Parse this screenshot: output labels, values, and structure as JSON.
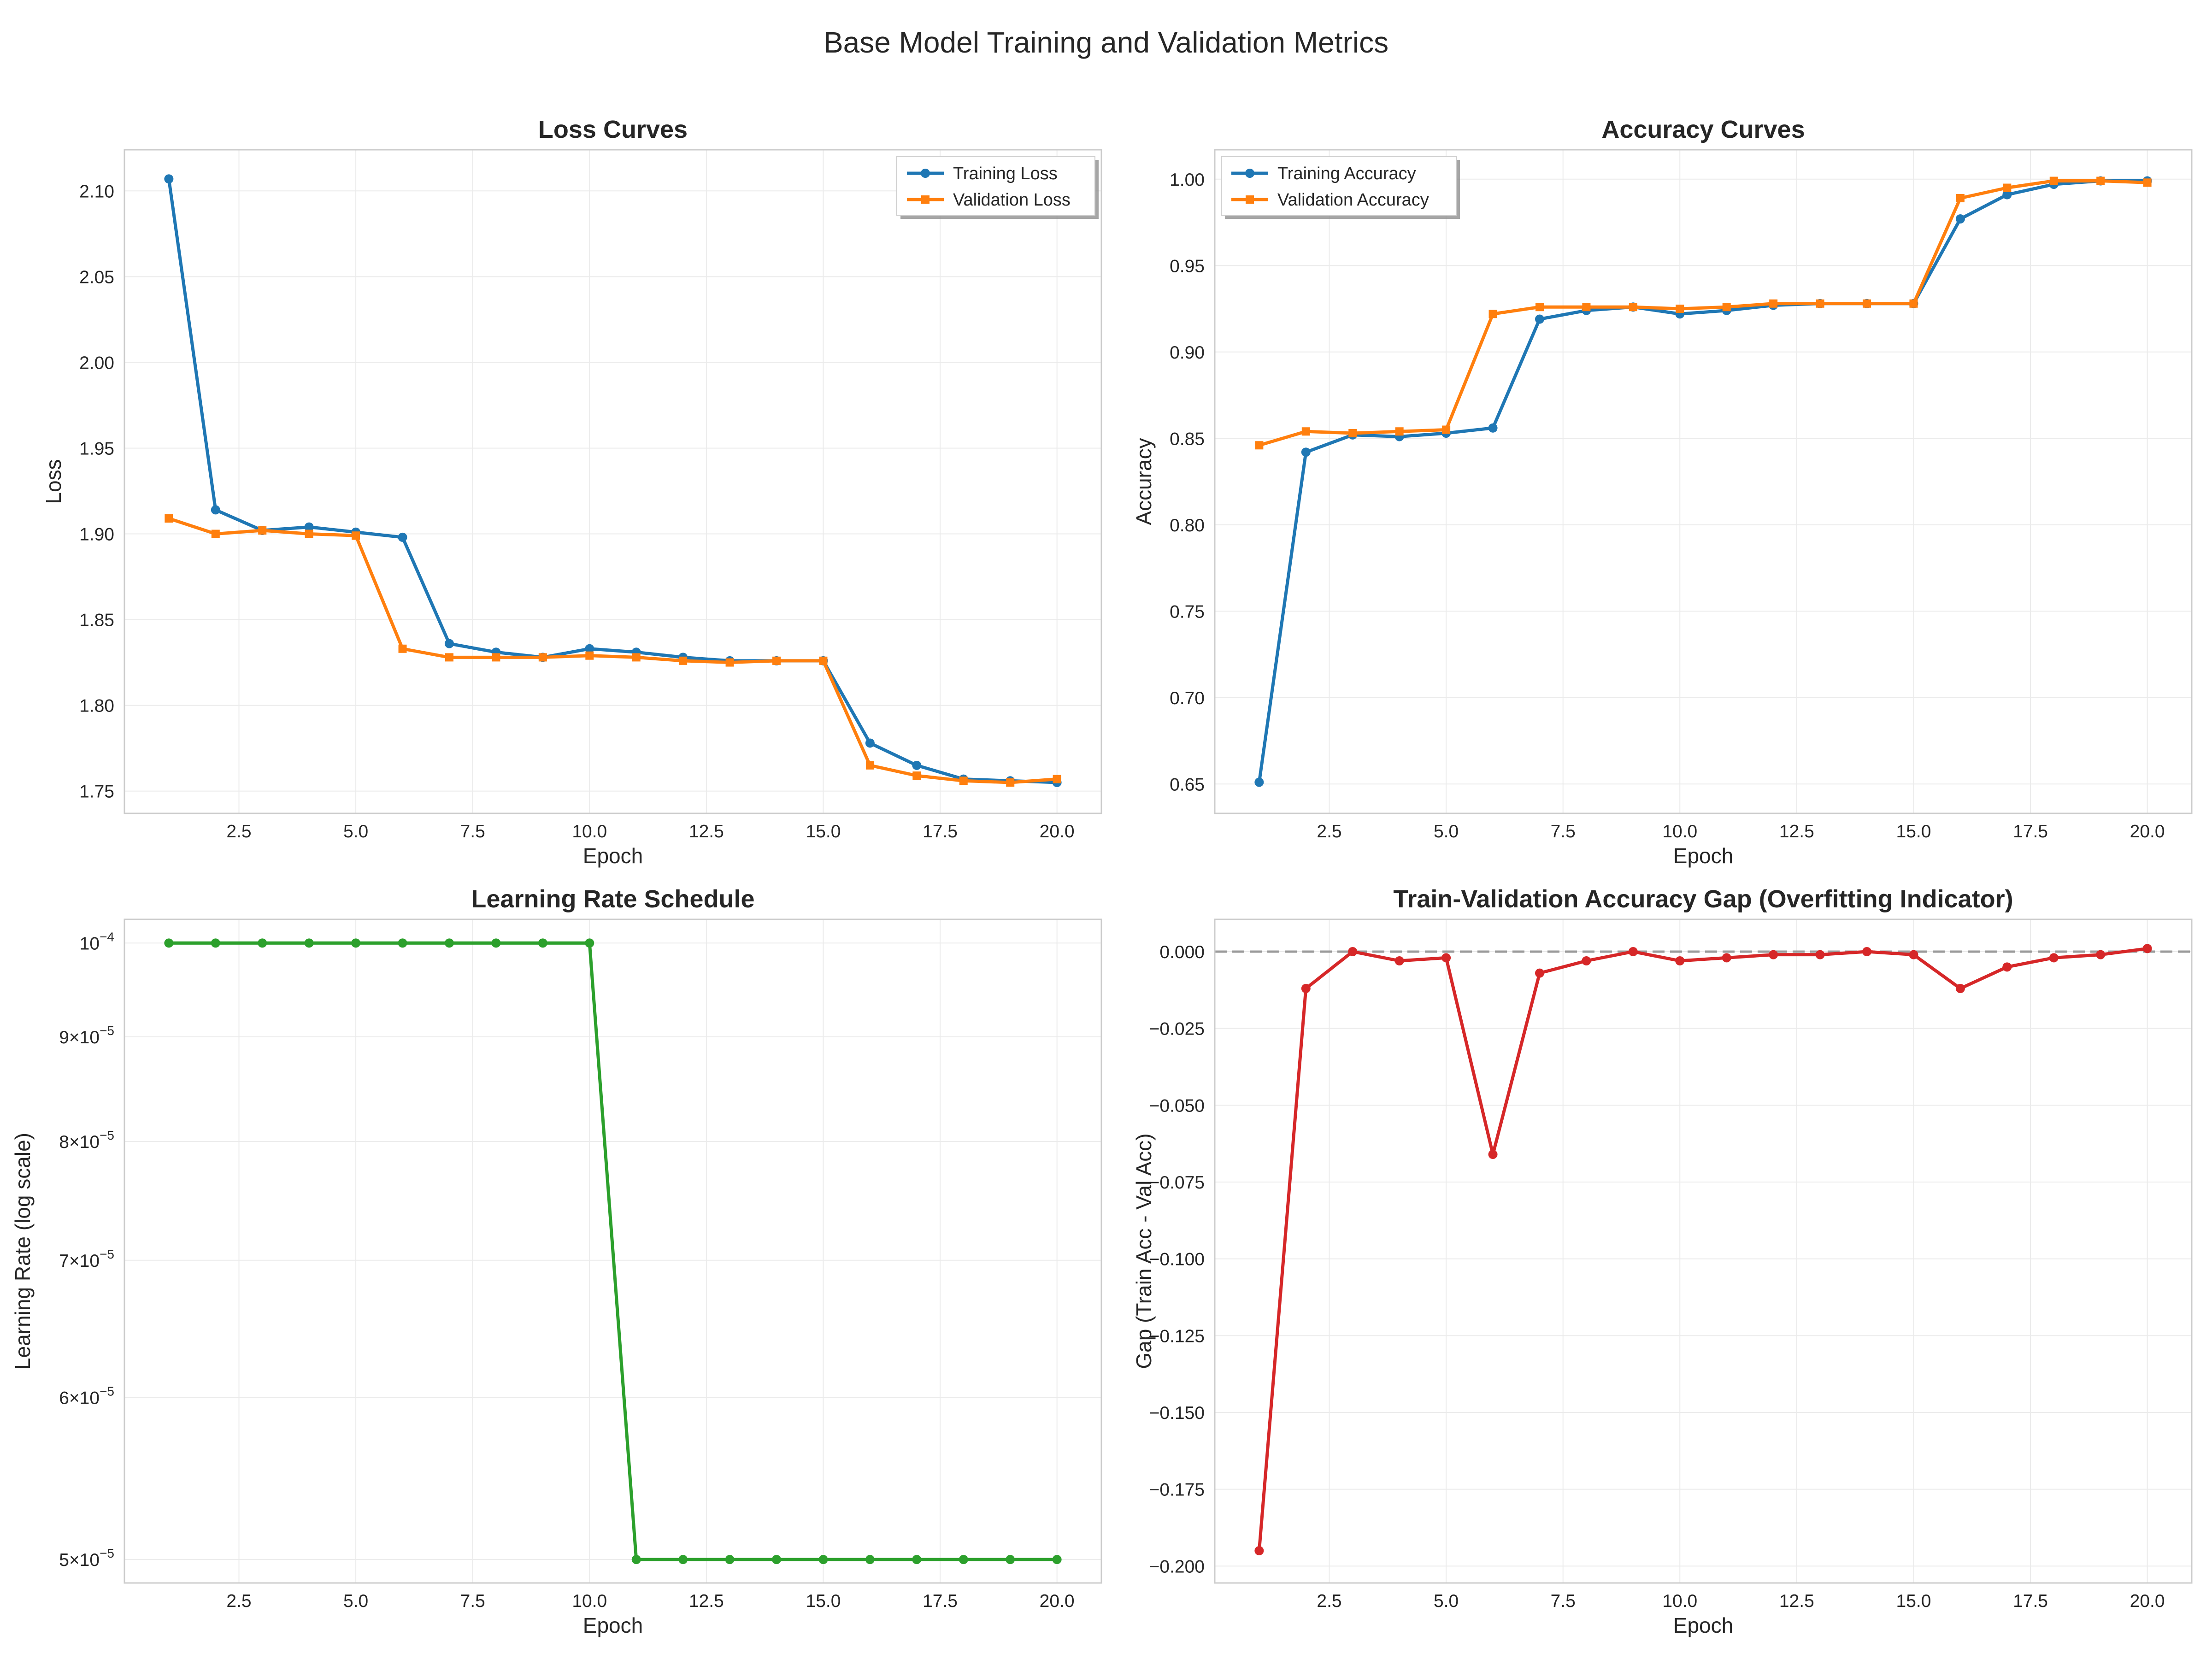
{
  "figure_title": "Base Model Training and Validation Metrics",
  "chart_data": [
    {
      "type": "line",
      "title": "Loss Curves",
      "xlabel": "Epoch",
      "ylabel": "Loss",
      "xlim": [
        0.05,
        20.95
      ],
      "ylim": [
        1.737,
        2.124
      ],
      "xticks": [
        2.5,
        5.0,
        7.5,
        10.0,
        12.5,
        15.0,
        17.5,
        20.0
      ],
      "yticks": [
        1.75,
        1.8,
        1.85,
        1.9,
        1.95,
        2.0,
        2.05,
        2.1
      ],
      "grid": true,
      "legend": "top-right",
      "x": [
        1,
        2,
        3,
        4,
        5,
        6,
        7,
        8,
        9,
        10,
        11,
        12,
        13,
        14,
        15,
        16,
        17,
        18,
        19,
        20
      ],
      "series": [
        {
          "name": "Training Loss",
          "color": "#1f77b4",
          "marker": "circle",
          "values": [
            2.107,
            1.914,
            1.902,
            1.904,
            1.901,
            1.898,
            1.836,
            1.831,
            1.828,
            1.833,
            1.831,
            1.828,
            1.826,
            1.826,
            1.826,
            1.778,
            1.765,
            1.757,
            1.756,
            1.755
          ]
        },
        {
          "name": "Validation Loss",
          "color": "#ff7f0e",
          "marker": "square",
          "values": [
            1.909,
            1.9,
            1.902,
            1.9,
            1.899,
            1.833,
            1.828,
            1.828,
            1.828,
            1.829,
            1.828,
            1.826,
            1.825,
            1.826,
            1.826,
            1.765,
            1.759,
            1.756,
            1.755,
            1.757
          ]
        }
      ]
    },
    {
      "type": "line",
      "title": "Accuracy Curves",
      "xlabel": "Epoch",
      "ylabel": "Accuracy",
      "xlim": [
        0.05,
        20.95
      ],
      "ylim": [
        0.633,
        1.017
      ],
      "xticks": [
        2.5,
        5.0,
        7.5,
        10.0,
        12.5,
        15.0,
        17.5,
        20.0
      ],
      "yticks": [
        0.65,
        0.7,
        0.75,
        0.8,
        0.85,
        0.9,
        0.95,
        1.0
      ],
      "grid": true,
      "legend": "top-left",
      "x": [
        1,
        2,
        3,
        4,
        5,
        6,
        7,
        8,
        9,
        10,
        11,
        12,
        13,
        14,
        15,
        16,
        17,
        18,
        19,
        20
      ],
      "series": [
        {
          "name": "Training Accuracy",
          "color": "#1f77b4",
          "marker": "circle",
          "values": [
            0.651,
            0.842,
            0.852,
            0.851,
            0.853,
            0.856,
            0.919,
            0.924,
            0.926,
            0.922,
            0.924,
            0.927,
            0.928,
            0.928,
            0.928,
            0.977,
            0.991,
            0.997,
            0.999,
            0.999
          ]
        },
        {
          "name": "Validation Accuracy",
          "color": "#ff7f0e",
          "marker": "square",
          "values": [
            0.846,
            0.854,
            0.853,
            0.854,
            0.855,
            0.922,
            0.926,
            0.926,
            0.926,
            0.925,
            0.926,
            0.928,
            0.928,
            0.928,
            0.928,
            0.989,
            0.995,
            0.999,
            0.999,
            0.998
          ]
        }
      ]
    },
    {
      "type": "line",
      "title": "Learning Rate Schedule",
      "xlabel": "Epoch",
      "ylabel": "Learning Rate (log scale)",
      "yscale": "log",
      "xlim": [
        0.05,
        20.95
      ],
      "ylim": [
        4.87e-05,
        0.0001027
      ],
      "xticks": [
        2.5,
        5.0,
        7.5,
        10.0,
        12.5,
        15.0,
        17.5,
        20.0
      ],
      "yticks": [
        {
          "value": 5e-05,
          "mant": "5",
          "exp": "−5"
        },
        {
          "value": 6e-05,
          "mant": "6",
          "exp": "−5"
        },
        {
          "value": 7e-05,
          "mant": "7",
          "exp": "−5"
        },
        {
          "value": 8e-05,
          "mant": "8",
          "exp": "−5"
        },
        {
          "value": 9e-05,
          "mant": "9",
          "exp": "−5"
        },
        {
          "value": 0.0001,
          "mant": "",
          "exp": "−4"
        }
      ],
      "grid": true,
      "x": [
        1,
        2,
        3,
        4,
        5,
        6,
        7,
        8,
        9,
        10,
        11,
        12,
        13,
        14,
        15,
        16,
        17,
        18,
        19,
        20
      ],
      "series": [
        {
          "color": "#2ca02c",
          "marker": "circle",
          "values": [
            0.0001,
            0.0001,
            0.0001,
            0.0001,
            0.0001,
            0.0001,
            0.0001,
            0.0001,
            0.0001,
            0.0001,
            5e-05,
            5e-05,
            5e-05,
            5e-05,
            5e-05,
            5e-05,
            5e-05,
            5e-05,
            5e-05,
            5e-05
          ]
        }
      ]
    },
    {
      "type": "line",
      "title": "Train-Validation Accuracy Gap (Overfitting Indicator)",
      "xlabel": "Epoch",
      "ylabel": "Gap (Train Acc - Val Acc)",
      "xlim": [
        0.05,
        20.95
      ],
      "ylim": [
        -0.2055,
        0.0105
      ],
      "xticks": [
        2.5,
        5.0,
        7.5,
        10.0,
        12.5,
        15.0,
        17.5,
        20.0
      ],
      "yticks": [
        -0.2,
        -0.175,
        -0.15,
        -0.125,
        -0.1,
        -0.075,
        -0.05,
        -0.025,
        0.0
      ],
      "grid": true,
      "reference_line": 0,
      "x": [
        1,
        2,
        3,
        4,
        5,
        6,
        7,
        8,
        9,
        10,
        11,
        12,
        13,
        14,
        15,
        16,
        17,
        18,
        19,
        20
      ],
      "series": [
        {
          "color": "#d62728",
          "marker": "circle",
          "values": [
            -0.195,
            -0.012,
            0.0,
            -0.003,
            -0.002,
            -0.066,
            -0.007,
            -0.003,
            0.0,
            -0.003,
            -0.002,
            -0.001,
            -0.001,
            0.0,
            -0.001,
            -0.012,
            -0.005,
            -0.002,
            -0.001,
            0.001
          ]
        }
      ]
    }
  ]
}
